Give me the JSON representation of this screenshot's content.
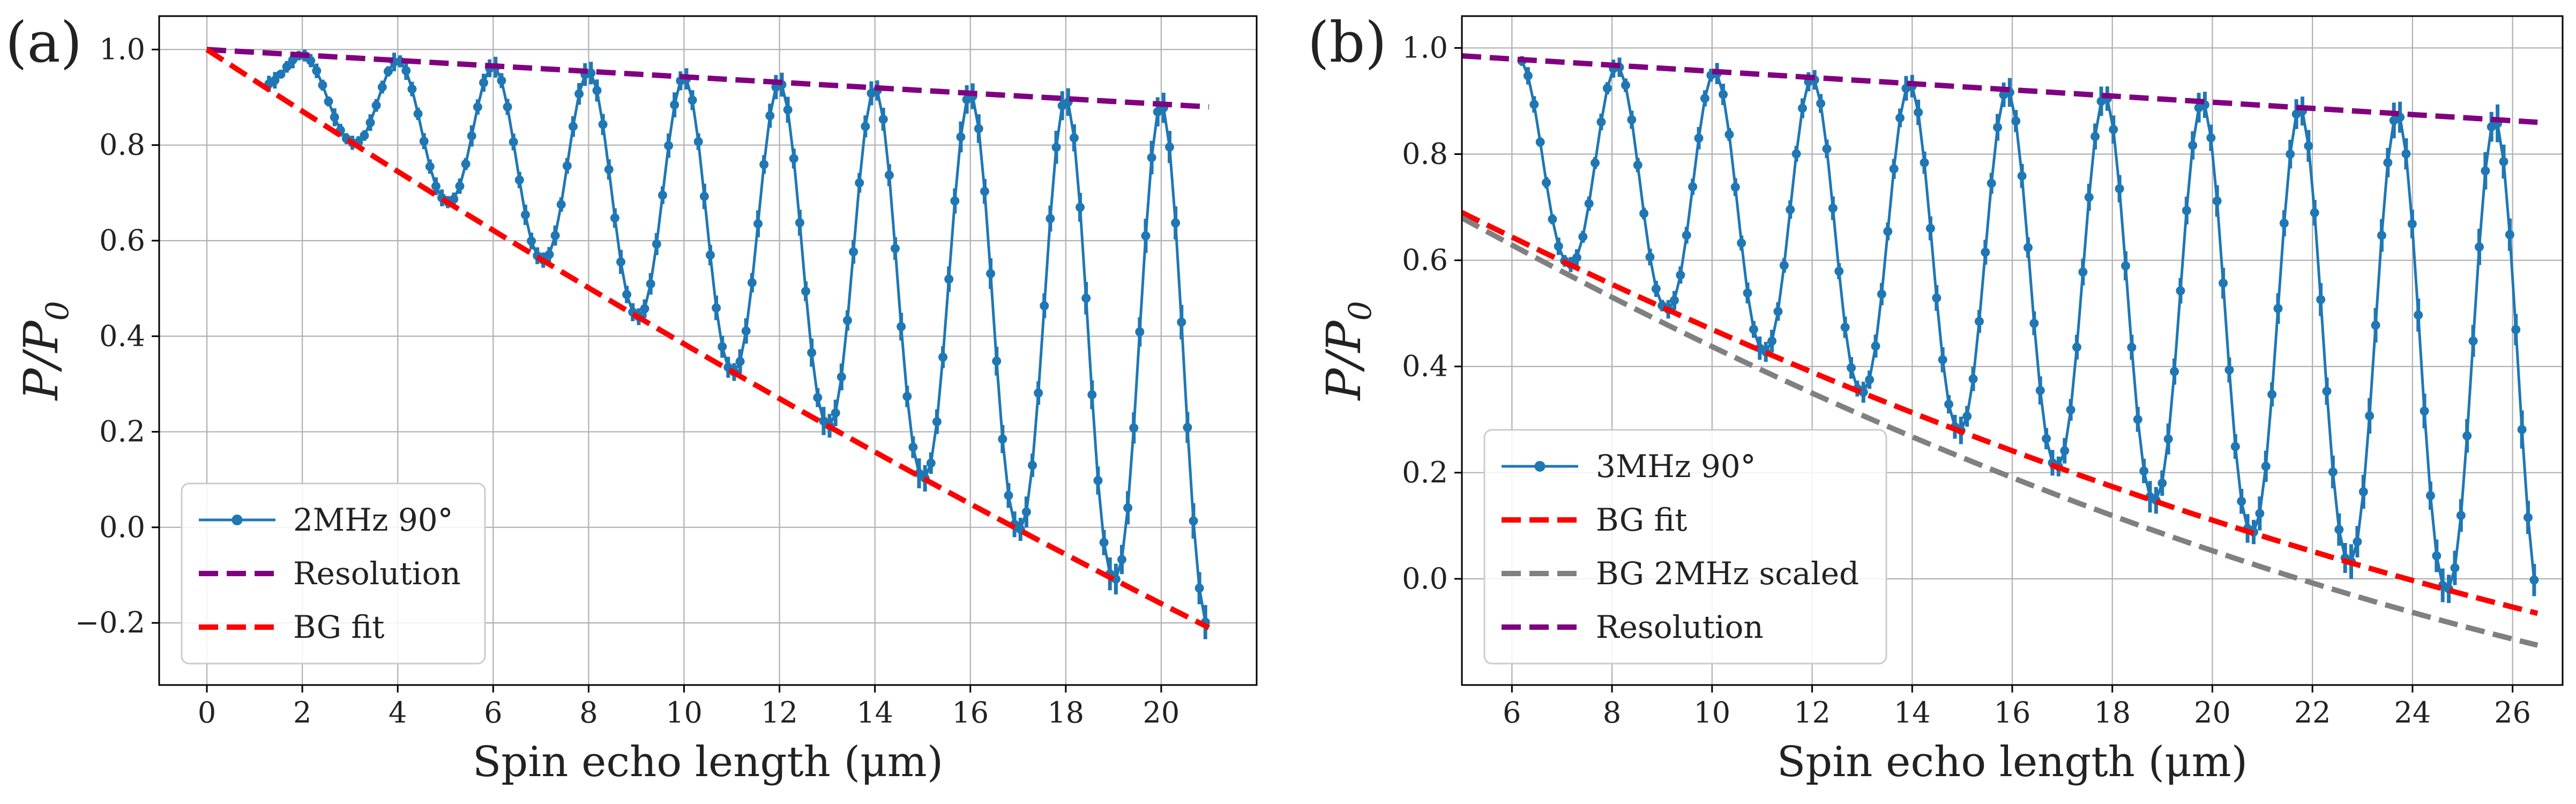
{
  "chart_data": [
    {
      "panel_label": "(a)",
      "type": "line",
      "xlabel": "Spin echo length (μm)",
      "ylabel": "P/P",
      "ylabel_sub": "0",
      "xlim": [
        -1.0,
        22.0
      ],
      "ylim": [
        -0.33,
        1.07
      ],
      "xticks": [
        0,
        2,
        4,
        6,
        8,
        10,
        12,
        14,
        16,
        18,
        20
      ],
      "yticks": [
        -0.2,
        0.0,
        0.2,
        0.4,
        0.6,
        0.8,
        1.0
      ],
      "grid": true,
      "legend_position": "lower-left",
      "series": [
        {
          "name": "2MHz 90°",
          "style": "line-markers-errorbars",
          "color": "#1f77b4",
          "x_start": 1.3,
          "x_end": 21.0,
          "period": 2.0,
          "peak_envelope": {
            "type": "linear",
            "x0": 0,
            "y0": 1.0,
            "x1": 21,
            "y1": 0.88
          },
          "trough_envelope": {
            "type": "quadratic",
            "y0": 1.0,
            "y_mid": 0.355,
            "y_end": -0.21
          }
        },
        {
          "name": "Resolution",
          "style": "dashed",
          "color": "#800080",
          "x": [
            0,
            21
          ],
          "y": [
            1.0,
            0.88
          ]
        },
        {
          "name": "BG fit",
          "style": "dashed",
          "color": "#ff0000",
          "x": [
            0,
            10.5,
            21
          ],
          "y": [
            1.0,
            0.355,
            -0.21
          ]
        }
      ]
    },
    {
      "panel_label": "(b)",
      "type": "line",
      "xlabel": "Spin echo length (μm)",
      "ylabel": "P/P",
      "ylabel_sub": "0",
      "xlim": [
        5.0,
        27.0
      ],
      "ylim": [
        -0.2,
        1.06
      ],
      "xticks": [
        6,
        8,
        10,
        12,
        14,
        16,
        18,
        20,
        22,
        24,
        26
      ],
      "yticks": [
        0.0,
        0.2,
        0.4,
        0.6,
        0.8,
        1.0
      ],
      "grid": true,
      "legend_position": "lower-left",
      "series": [
        {
          "name": "3MHz 90°",
          "style": "line-markers-errorbars",
          "color": "#1f77b4",
          "x_start": 6.2,
          "x_end": 26.5,
          "period": 1.95,
          "peak_envelope": {
            "type": "linear",
            "x0": 5,
            "y0": 0.985,
            "x1": 26.5,
            "y1": 0.86
          },
          "trough_envelope": {
            "type": "quadratic",
            "y0": 0.69,
            "y_mid": 0.25,
            "y_end": -0.065
          }
        },
        {
          "name": "BG fit",
          "style": "dashed",
          "color": "#ff0000",
          "x": [
            5,
            15.75,
            26.5
          ],
          "y": [
            0.69,
            0.25,
            -0.065
          ]
        },
        {
          "name": "BG 2MHz scaled",
          "style": "dashed",
          "color": "#808080",
          "x": [
            5,
            15.75,
            26.5
          ],
          "y": [
            0.68,
            0.2,
            -0.125
          ]
        },
        {
          "name": "Resolution",
          "style": "dashed",
          "color": "#800080",
          "x": [
            5,
            26.5
          ],
          "y": [
            0.985,
            0.86
          ]
        }
      ]
    }
  ]
}
